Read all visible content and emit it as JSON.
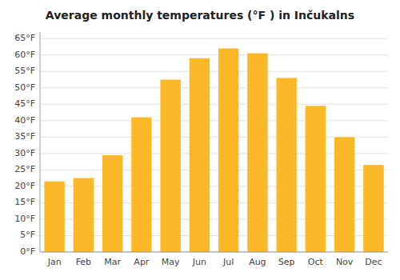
{
  "chart_data": {
    "type": "bar",
    "title": "Average monthly temperatures (°F ) in Inčukalns",
    "categories": [
      "Jan",
      "Feb",
      "Mar",
      "Apr",
      "May",
      "Jun",
      "Jul",
      "Aug",
      "Sep",
      "Oct",
      "Nov",
      "Dec"
    ],
    "values": [
      21.5,
      22.5,
      29.5,
      41.0,
      52.5,
      59.0,
      62.0,
      60.5,
      53.0,
      44.5,
      35.0,
      26.5
    ],
    "color": "#FDB827",
    "ylim": [
      0,
      67
    ],
    "yticks": [
      {
        "value": 0,
        "label": "0°F"
      },
      {
        "value": 5,
        "label": "5°F"
      },
      {
        "value": 10,
        "label": "10°F"
      },
      {
        "value": 15,
        "label": "15°F"
      },
      {
        "value": 20,
        "label": "20°F"
      },
      {
        "value": 25,
        "label": "25°F"
      },
      {
        "value": 30,
        "label": "30°F"
      },
      {
        "value": 35,
        "label": "35°F"
      },
      {
        "value": 40,
        "label": "40°F"
      },
      {
        "value": 45,
        "label": "45°F"
      },
      {
        "value": 50,
        "label": "50°F"
      },
      {
        "value": 55,
        "label": "55°F"
      },
      {
        "value": 60,
        "label": "60°F"
      },
      {
        "value": 65,
        "label": "65°F"
      }
    ],
    "grid": true
  }
}
